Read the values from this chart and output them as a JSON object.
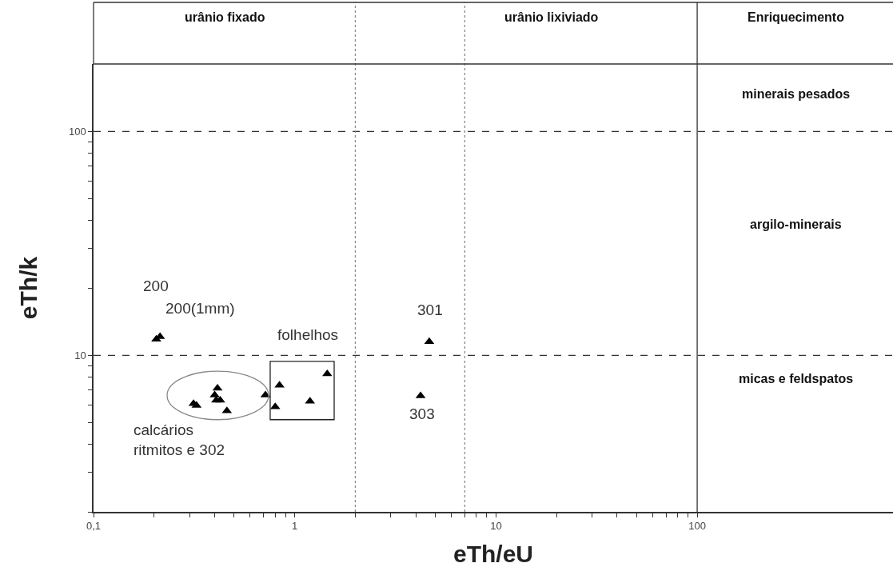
{
  "chart_data": {
    "type": "scatter",
    "xlabel": "eTh/eU",
    "ylabel": "eTh/k",
    "log": "xy",
    "marker": "triangle",
    "xlim": [
      0.1,
      940
    ],
    "ylim": [
      2,
      200
    ],
    "xticks": [
      {
        "value": 0.1,
        "label": "0,1"
      },
      {
        "value": 0.2,
        "label": null
      },
      {
        "value": 0.3,
        "label": null
      },
      {
        "value": 0.4,
        "label": null
      },
      {
        "value": 0.5,
        "label": null
      },
      {
        "value": 0.6,
        "label": null
      },
      {
        "value": 0.7,
        "label": null
      },
      {
        "value": 0.8,
        "label": null
      },
      {
        "value": 0.9,
        "label": null
      },
      1,
      {
        "value": 2,
        "label": null
      },
      {
        "value": 3,
        "label": null
      },
      {
        "value": 4,
        "label": null
      },
      {
        "value": 5,
        "label": null
      },
      {
        "value": 6,
        "label": null
      },
      {
        "value": 7,
        "label": null
      },
      {
        "value": 8,
        "label": null
      },
      {
        "value": 9,
        "label": null
      },
      10,
      {
        "value": 20,
        "label": null
      },
      {
        "value": 30,
        "label": null
      },
      {
        "value": 40,
        "label": null
      },
      {
        "value": 50,
        "label": null
      },
      {
        "value": 60,
        "label": null
      },
      {
        "value": 70,
        "label": null
      },
      {
        "value": 80,
        "label": null
      },
      {
        "value": 90,
        "label": null
      },
      100
    ],
    "yticks": [
      {
        "value": 2,
        "label": null
      },
      {
        "value": 3,
        "label": null
      },
      {
        "value": 4,
        "label": null
      },
      {
        "value": 5,
        "label": null
      },
      {
        "value": 6,
        "label": null
      },
      {
        "value": 7,
        "label": null
      },
      {
        "value": 8,
        "label": null
      },
      {
        "value": 9,
        "label": null
      },
      10,
      {
        "value": 20,
        "label": null
      },
      {
        "value": 30,
        "label": null
      },
      {
        "value": 40,
        "label": null
      },
      {
        "value": 50,
        "label": null
      },
      {
        "value": 60,
        "label": null
      },
      {
        "value": 70,
        "label": null
      },
      {
        "value": 80,
        "label": null
      },
      {
        "value": 90,
        "label": null
      },
      100
    ],
    "series": [
      {
        "color": "#000000",
        "x": [
          0.205,
          0.214,
          0.314,
          0.325,
          0.413,
          0.4,
          0.426,
          0.407,
          0.46,
          0.715,
          0.84,
          0.8,
          1.19,
          1.45,
          4.66,
          4.22
        ],
        "values": [
          11.8,
          12.1,
          6.08,
          5.97,
          7.12,
          6.65,
          6.3,
          6.3,
          5.65,
          6.65,
          7.35,
          5.89,
          6.24,
          8.26,
          11.5,
          6.59
        ]
      }
    ],
    "ref_lines": [
      {
        "axis": "y",
        "value": 10,
        "color": "#333333",
        "line_style": "dashed"
      },
      {
        "axis": "y",
        "value": 100,
        "color": "#333333",
        "line_style": "dashed"
      },
      {
        "axis": "x",
        "value": 2,
        "color": "#888888",
        "line_style": "dotted"
      },
      {
        "axis": "x",
        "value": 7,
        "color": "#888888",
        "line_style": "dotted"
      },
      {
        "axis": "x",
        "value": 100,
        "color": "#333333",
        "line_style": "solid"
      }
    ],
    "annotations": [
      "urânio fixado",
      "urânio lixiviado",
      "Enriquecimento",
      "minerais pesados",
      "argilo-minerais",
      "micas e feldspatos",
      "200",
      "200(1mm)",
      "folhelhos",
      "301",
      "303",
      "calcários\nritmitos e 302"
    ]
  }
}
